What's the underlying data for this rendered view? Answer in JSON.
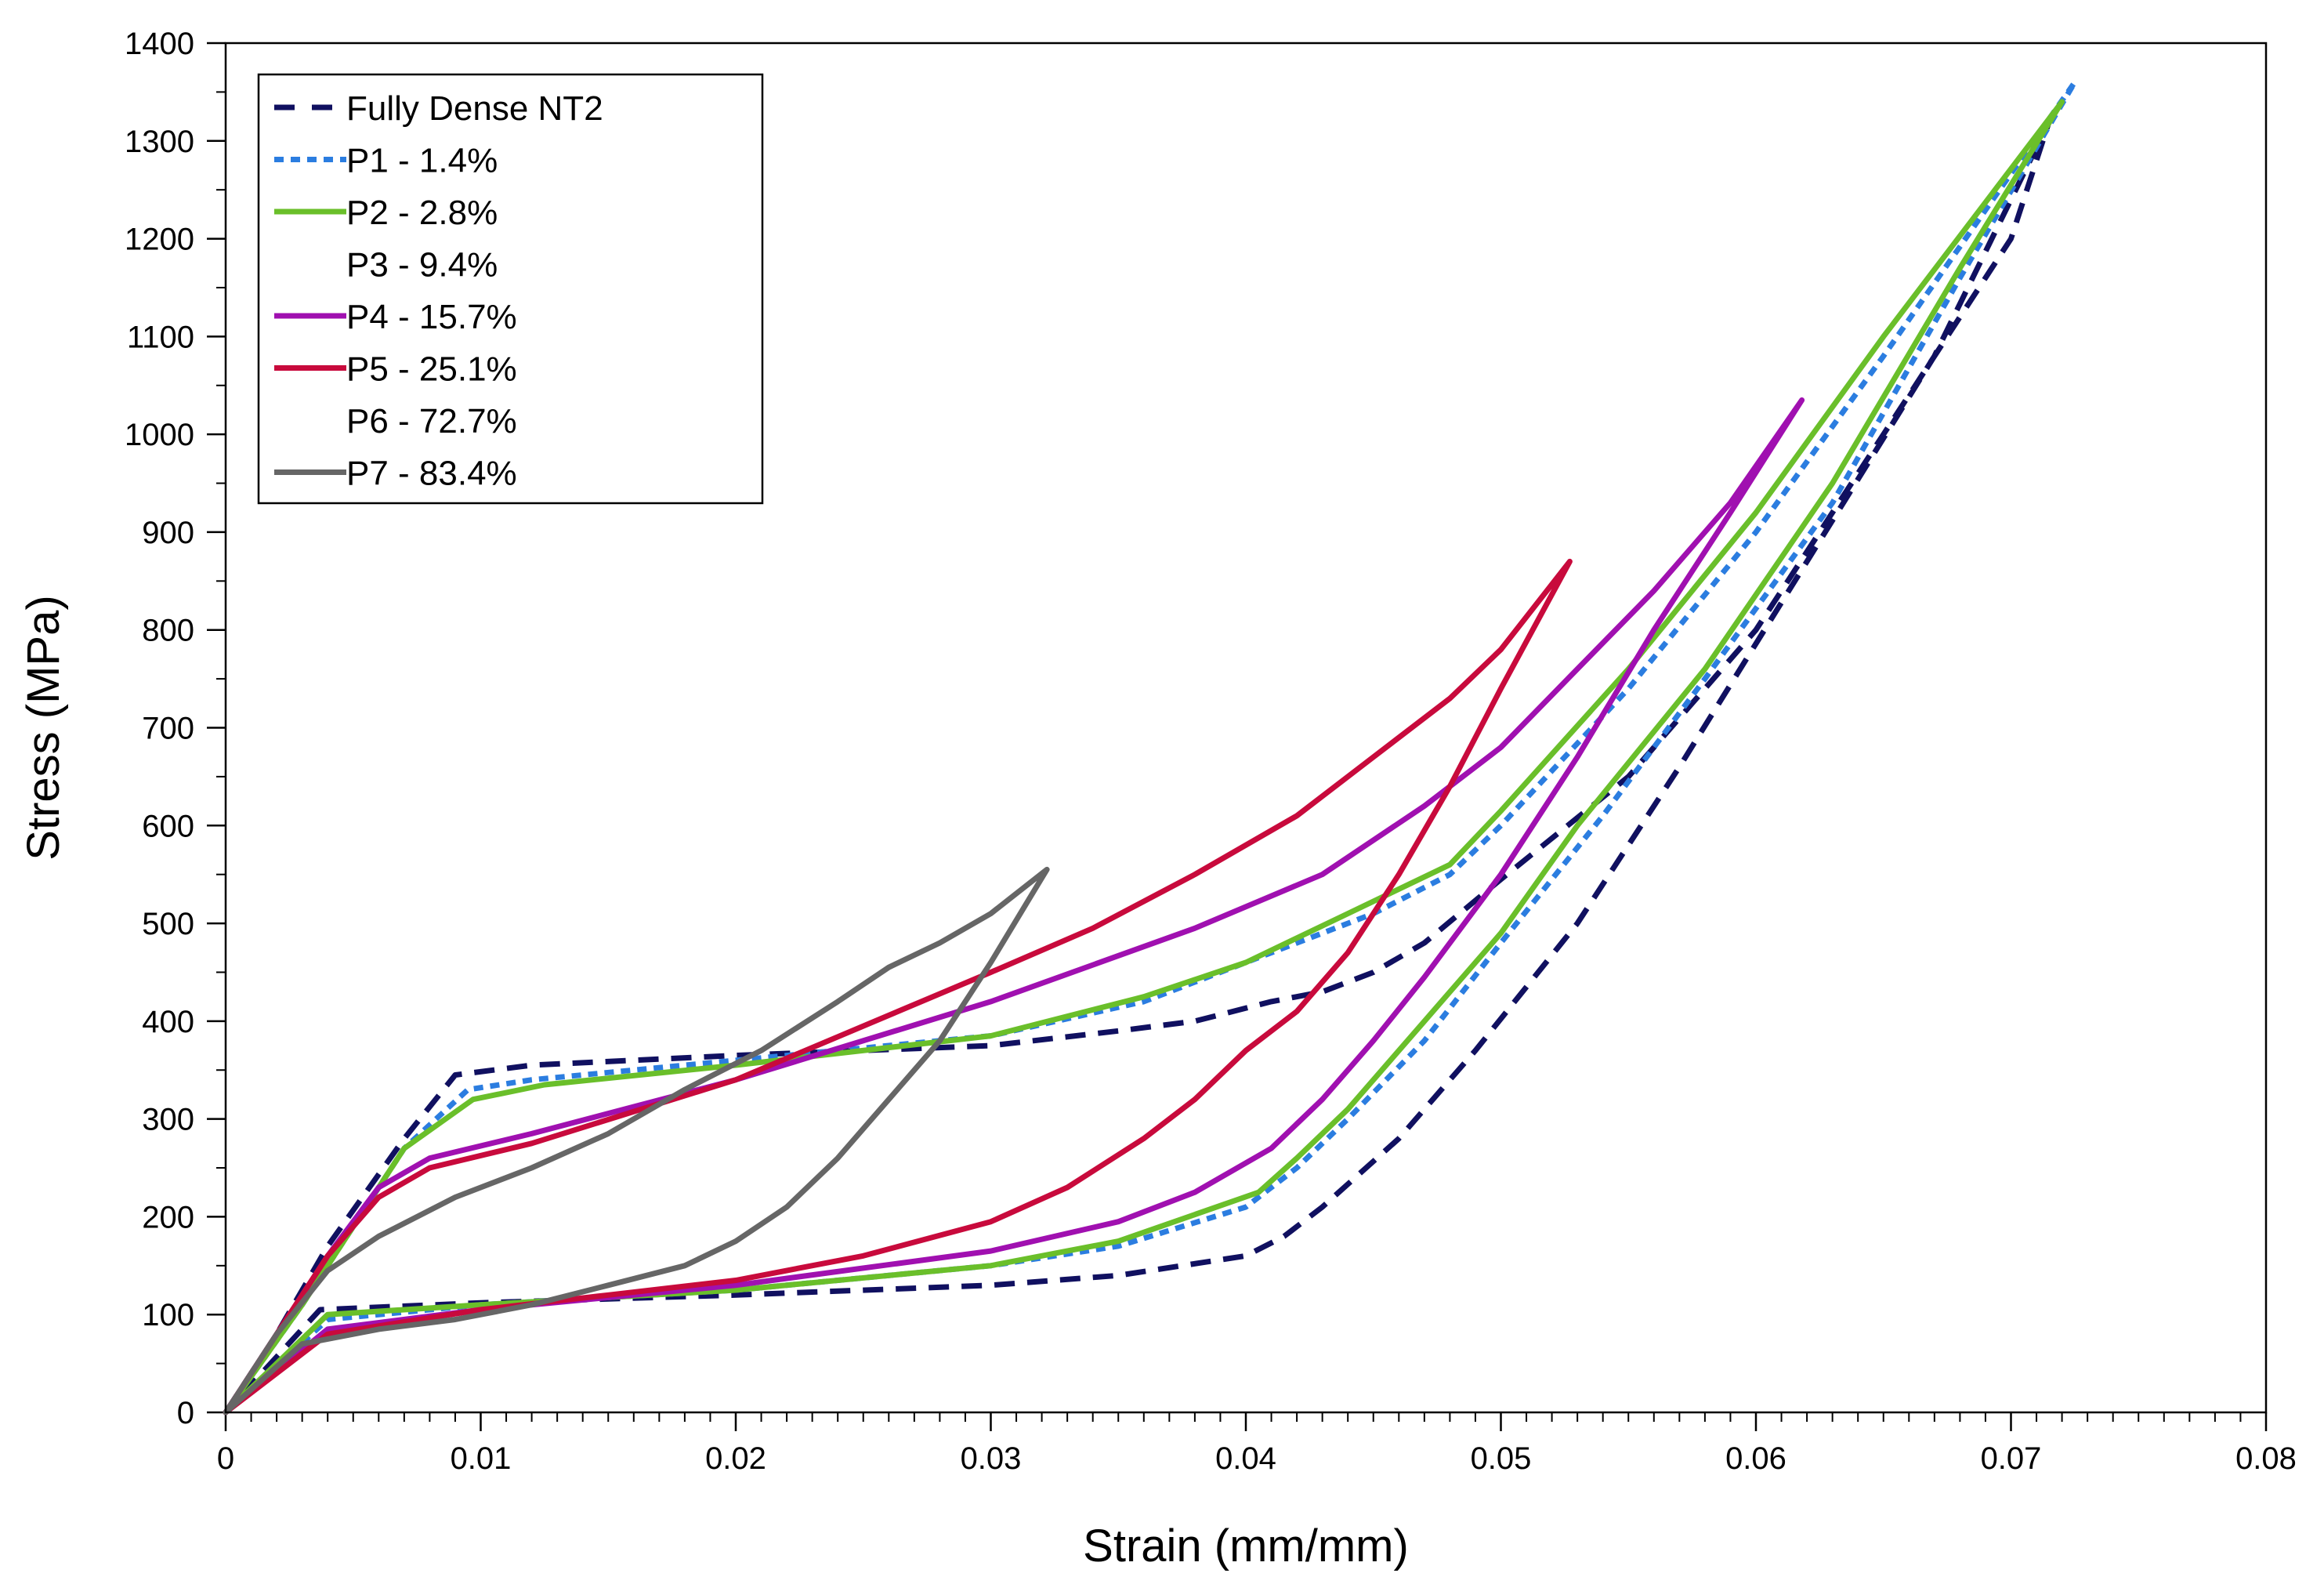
{
  "chart_data": {
    "type": "line",
    "xlabel": "Strain (mm/mm)",
    "ylabel": "Stress (MPa)",
    "xlim": [
      0,
      0.08
    ],
    "ylim": [
      0,
      1400
    ],
    "xticks": [
      0,
      0.01,
      0.02,
      0.03,
      0.04,
      0.05,
      0.06,
      0.07,
      0.08
    ],
    "xtick_labels": [
      "0",
      "0.01",
      "0.02",
      "0.03",
      "0.04",
      "0.05",
      "0.06",
      "0.07",
      "0.08"
    ],
    "yticks": [
      0,
      100,
      200,
      300,
      400,
      500,
      600,
      700,
      800,
      900,
      1000,
      1100,
      1200,
      1300,
      1400
    ],
    "ytick_labels": [
      "0",
      "100",
      "200",
      "300",
      "400",
      "500",
      "600",
      "700",
      "800",
      "900",
      "1000",
      "1100",
      "1200",
      "1300",
      "1400"
    ],
    "grid": false,
    "legend_position": "top-left",
    "series": [
      {
        "name": "Fully Dense NT2",
        "color": "#101060",
        "style": "dashed",
        "x": [
          0,
          0.002,
          0.004,
          0.007,
          0.009,
          0.012,
          0.02,
          0.03,
          0.035,
          0.038,
          0.041,
          0.043,
          0.045,
          0.047,
          0.05,
          0.055,
          0.06,
          0.065,
          0.07,
          0.0715,
          0.067,
          0.062,
          0.057,
          0.053,
          0.049,
          0.046,
          0.043,
          0.0415,
          0.04,
          0.035,
          0.03,
          0.02,
          0.01,
          0.0037,
          0
        ],
        "y": [
          0,
          80,
          170,
          280,
          345,
          355,
          365,
          375,
          390,
          400,
          420,
          430,
          450,
          480,
          545,
          650,
          800,
          1000,
          1200,
          1320,
          1080,
          870,
          660,
          500,
          370,
          280,
          210,
          180,
          160,
          140,
          130,
          120,
          112,
          105,
          0
        ]
      },
      {
        "name": "P1 - 1.4%",
        "color": "#2b7de0",
        "style": "dotted",
        "x": [
          0,
          0.003,
          0.005,
          0.007,
          0.0095,
          0.012,
          0.02,
          0.03,
          0.036,
          0.04,
          0.045,
          0.048,
          0.05,
          0.055,
          0.06,
          0.065,
          0.0725,
          0.068,
          0.063,
          0.058,
          0.054,
          0.05,
          0.047,
          0.044,
          0.042,
          0.04,
          0.035,
          0.03,
          0.02,
          0.01,
          0.004,
          0
        ],
        "y": [
          0,
          110,
          190,
          270,
          330,
          340,
          360,
          385,
          420,
          460,
          510,
          550,
          600,
          740,
          900,
          1080,
          1360,
          1160,
          930,
          750,
          610,
          480,
          380,
          300,
          250,
          210,
          170,
          150,
          125,
          110,
          95,
          0
        ]
      },
      {
        "name": "P2 - 2.8%",
        "color": "#6abf2a",
        "style": "solid",
        "x": [
          0,
          0.003,
          0.005,
          0.007,
          0.0097,
          0.0125,
          0.02,
          0.03,
          0.036,
          0.04,
          0.044,
          0.048,
          0.05,
          0.055,
          0.06,
          0.065,
          0.072,
          0.068,
          0.063,
          0.058,
          0.053,
          0.05,
          0.047,
          0.044,
          0.042,
          0.0405,
          0.035,
          0.03,
          0.02,
          0.01,
          0.004,
          0
        ],
        "y": [
          0,
          110,
          190,
          270,
          320,
          335,
          355,
          385,
          425,
          460,
          510,
          560,
          615,
          760,
          920,
          1100,
          1340,
          1170,
          950,
          760,
          600,
          490,
          400,
          310,
          260,
          225,
          175,
          150,
          125,
          110,
          100,
          0
        ]
      },
      {
        "name": "P3 - 9.4%",
        "color": "#ffffff",
        "style": "none",
        "x": [],
        "y": []
      },
      {
        "name": "P4 - 15.7%",
        "color": "#a010b0",
        "style": "solid",
        "x": [
          0,
          0.002,
          0.004,
          0.006,
          0.008,
          0.012,
          0.02,
          0.03,
          0.038,
          0.043,
          0.047,
          0.05,
          0.053,
          0.056,
          0.059,
          0.0618,
          0.059,
          0.056,
          0.053,
          0.05,
          0.047,
          0.045,
          0.043,
          0.041,
          0.038,
          0.035,
          0.03,
          0.02,
          0.01,
          0.004,
          0
        ],
        "y": [
          0,
          80,
          160,
          230,
          260,
          285,
          340,
          420,
          495,
          550,
          620,
          680,
          760,
          840,
          930,
          1035,
          920,
          800,
          670,
          550,
          445,
          380,
          320,
          270,
          225,
          195,
          165,
          130,
          105,
          85,
          0
        ]
      },
      {
        "name": "P5 - 25.1%",
        "color": "#c80a3c",
        "style": "solid",
        "x": [
          0,
          0.002,
          0.004,
          0.006,
          0.008,
          0.012,
          0.02,
          0.03,
          0.034,
          0.038,
          0.042,
          0.045,
          0.048,
          0.05,
          0.0527,
          0.05,
          0.048,
          0.046,
          0.044,
          0.042,
          0.04,
          0.038,
          0.036,
          0.033,
          0.03,
          0.025,
          0.02,
          0.015,
          0.01,
          0.004,
          0
        ],
        "y": [
          0,
          80,
          160,
          220,
          250,
          275,
          340,
          450,
          495,
          550,
          610,
          670,
          730,
          780,
          870,
          740,
          640,
          550,
          470,
          410,
          370,
          320,
          280,
          230,
          195,
          160,
          135,
          120,
          105,
          80,
          0
        ]
      },
      {
        "name": "P6 - 72.7%",
        "color": "#ffffff",
        "style": "none",
        "x": [],
        "y": []
      },
      {
        "name": "P7 - 83.4%",
        "color": "#666666",
        "style": "solid",
        "x": [
          0,
          0.002,
          0.004,
          0.006,
          0.009,
          0.012,
          0.015,
          0.018,
          0.021,
          0.024,
          0.026,
          0.028,
          0.03,
          0.0322,
          0.03,
          0.028,
          0.026,
          0.024,
          0.022,
          0.02,
          0.018,
          0.015,
          0.012,
          0.009,
          0.006,
          0.003,
          0
        ],
        "y": [
          0,
          80,
          145,
          180,
          220,
          250,
          285,
          330,
          370,
          420,
          455,
          480,
          510,
          555,
          460,
          380,
          320,
          260,
          210,
          175,
          150,
          130,
          110,
          95,
          85,
          70,
          0
        ]
      }
    ]
  }
}
